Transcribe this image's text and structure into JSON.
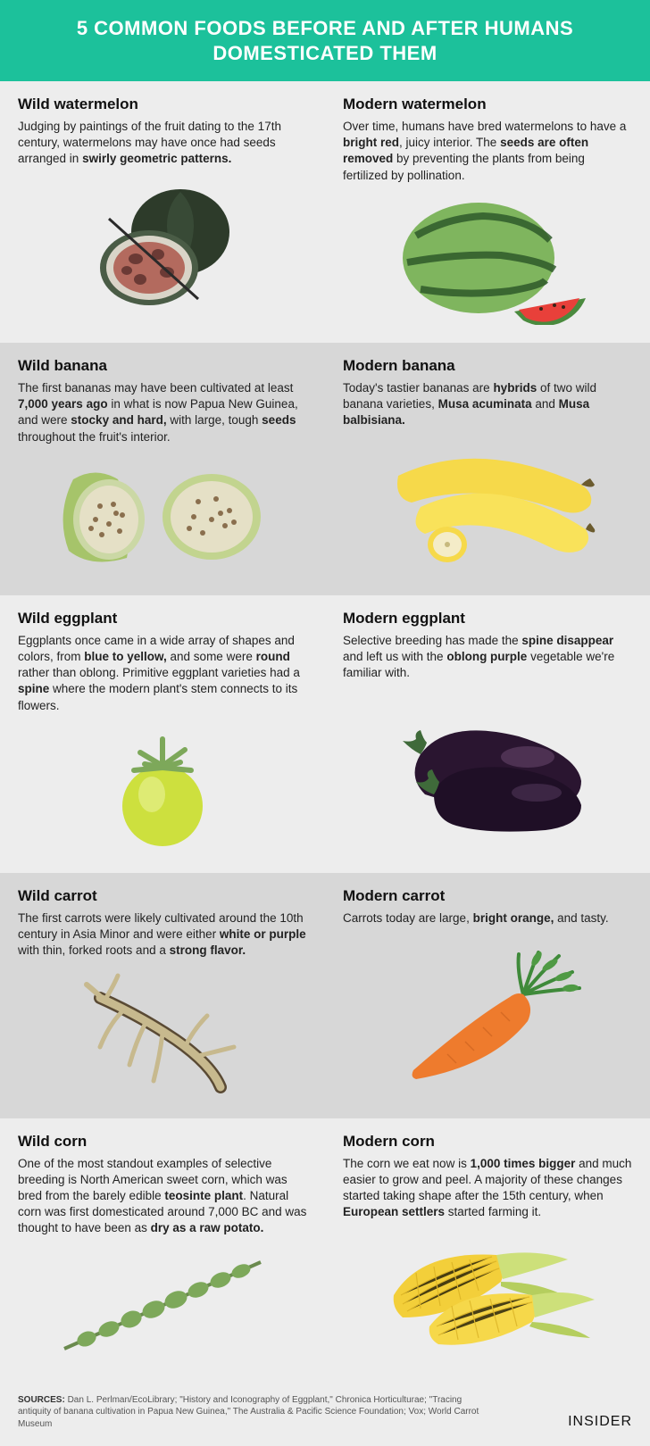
{
  "header": {
    "title": "5 COMMON FOODS BEFORE AND AFTER HUMANS DOMESTICATED THEM"
  },
  "colors": {
    "header_bg": "#1cc19b",
    "header_text": "#ffffff",
    "row_a_bg": "#ededed",
    "row_b_bg": "#d7d7d7",
    "text": "#222222"
  },
  "rows": [
    {
      "bg": "a",
      "wild": {
        "title": "Wild watermelon",
        "desc_html": "Judging by paintings of the fruit dating to the 17th century, watermelons may have once had seeds arranged in <b>swirly geometric patterns.</b>"
      },
      "modern": {
        "title": "Modern watermelon",
        "desc_html": "Over time, humans have bred watermelons to have a <b>bright red</b>, juicy interior. The <b>seeds are often removed</b> by preventing the plants from being fertilized by pollination."
      }
    },
    {
      "bg": "b",
      "wild": {
        "title": "Wild banana",
        "desc_html": "The first bananas may have been cultivated at least <b>7,000 years ago</b> in what is now Papua New Guinea, and were <b>stocky and hard,</b> with large, tough <b>seeds</b> throughout the fruit's interior."
      },
      "modern": {
        "title": "Modern banana",
        "desc_html": "Today's tastier bananas are <b>hybrids</b> of two wild banana varieties, <b>Musa acuminata</b> and <b>Musa balbisiana.</b>"
      }
    },
    {
      "bg": "a",
      "wild": {
        "title": "Wild eggplant",
        "desc_html": "Eggplants once came in a wide array of shapes and colors, from <b>blue to yellow,</b> and some were <b>round</b> rather than oblong. Primitive eggplant varieties had a <b>spine</b> where the modern plant's stem connects to its flowers."
      },
      "modern": {
        "title": "Modern eggplant",
        "desc_html": "Selective breeding has made the <b>spine disappear</b> and left us with the <b>oblong purple</b> vegetable we're familiar with."
      }
    },
    {
      "bg": "b",
      "wild": {
        "title": "Wild carrot",
        "desc_html": "The first carrots were likely cultivated around the 10th century in Asia Minor and were either <b>white or purple</b> with thin, forked roots and a <b>strong flavor.</b>"
      },
      "modern": {
        "title": "Modern carrot",
        "desc_html": "Carrots today are large, <b>bright orange,</b> and tasty."
      }
    },
    {
      "bg": "a",
      "wild": {
        "title": "Wild corn",
        "desc_html": "One of the most standout examples of selective breeding is North American sweet corn, which was bred from the barely edible <b>teosinte plant</b>. Natural corn was first domesticated around 7,000 BC and was thought to have been as <b>dry as a raw potato.</b>"
      },
      "modern": {
        "title": "Modern corn",
        "desc_html": "The corn we eat now is <b>1,000 times bigger</b> and much easier to grow and peel. A majority of these changes started taking shape after the 15th century, when <b>European settlers</b> started farming it."
      }
    }
  ],
  "footer": {
    "sources_label": "SOURCES:",
    "sources_text": "Dan L. Perlman/EcoLibrary; \"History and Iconography of Eggplant,\" Chronica Horticulturae; \"Tracing antiquity of banana cultivation in Papua New Guinea,\" The Australia & Pacific Science Foundation; Vox; World Carrot Museum",
    "brand": "INSIDER"
  }
}
